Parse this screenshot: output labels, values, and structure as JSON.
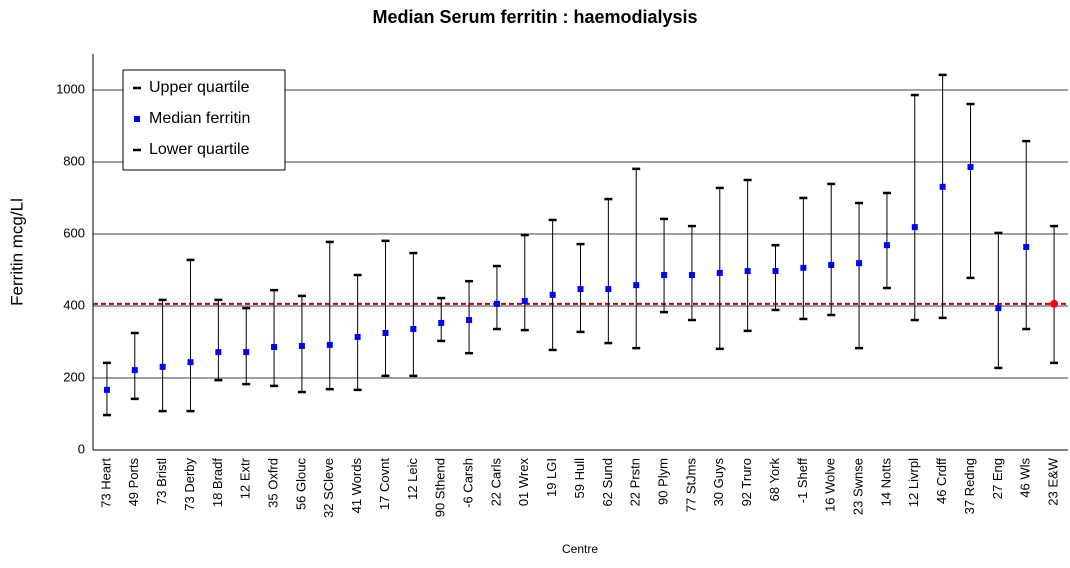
{
  "chart_data": {
    "type": "errorbar",
    "title": "Median Serum ferritin : haemodialysis",
    "x_label": "Centre",
    "y_label": "Ferritin mcg/Ll",
    "categories": [
      "73 Heart",
      "49 Ports",
      "73 Bristl",
      "73 Derby",
      "18 Bradf",
      "12 Extr",
      "35 Oxfrd",
      "56 Glouc",
      "32 SCleve",
      "41 Words",
      "17 Covnt",
      "12 Leic",
      "90 Sthend",
      "-6 Carsh",
      "22 Carls",
      "01 Wrex",
      "19 LGI",
      "59 Hull",
      "62 Sund",
      "22 Prstn",
      "90 Plym",
      "77 StJms",
      "30 Guys",
      "92 Truro",
      "68 York",
      "-1 Sheff",
      "16 Wolve",
      "23 Swnse",
      "14 Notts",
      "12 Livrpl",
      "46 Crdff",
      "37 Redng",
      "27 Eng",
      "46 Wls",
      "23 E&W"
    ],
    "series": [
      {
        "name": "Upper quartile",
        "color": "#000000",
        "values": [
          242,
          325,
          417,
          528,
          417,
          394,
          444,
          428,
          578,
          486,
          581,
          547,
          422,
          469,
          511,
          597,
          639,
          572,
          697,
          781,
          642,
          622,
          728,
          750,
          569,
          700,
          739,
          686,
          714,
          986,
          1042,
          961,
          603,
          858,
          622
        ]
      },
      {
        "name": "Median ferritin",
        "color": "#0000ff",
        "values": [
          167,
          222,
          231,
          244,
          272,
          272,
          286,
          289,
          292,
          314,
          325,
          336,
          353,
          361,
          406,
          414,
          431,
          447,
          447,
          458,
          486,
          486,
          492,
          497,
          497,
          506,
          514,
          519,
          569,
          619,
          731,
          786,
          394,
          564,
          406
        ]
      },
      {
        "name": "Lower quartile",
        "color": "#000000",
        "values": [
          97,
          142,
          108,
          108,
          194,
          183,
          178,
          161,
          169,
          167,
          206,
          206,
          303,
          269,
          336,
          333,
          278,
          328,
          297,
          283,
          383,
          361,
          281,
          331,
          389,
          364,
          375,
          283,
          450,
          361,
          367,
          478,
          228,
          336,
          242
        ]
      }
    ],
    "highlight_last_color": "#ff0000",
    "reference_line": 406,
    "reference_color": "#cc0000",
    "ylim": [
      0,
      1100
    ],
    "yticks": [
      0,
      200,
      400,
      600,
      800,
      1000
    ],
    "grid": true,
    "legend": "top-left"
  }
}
